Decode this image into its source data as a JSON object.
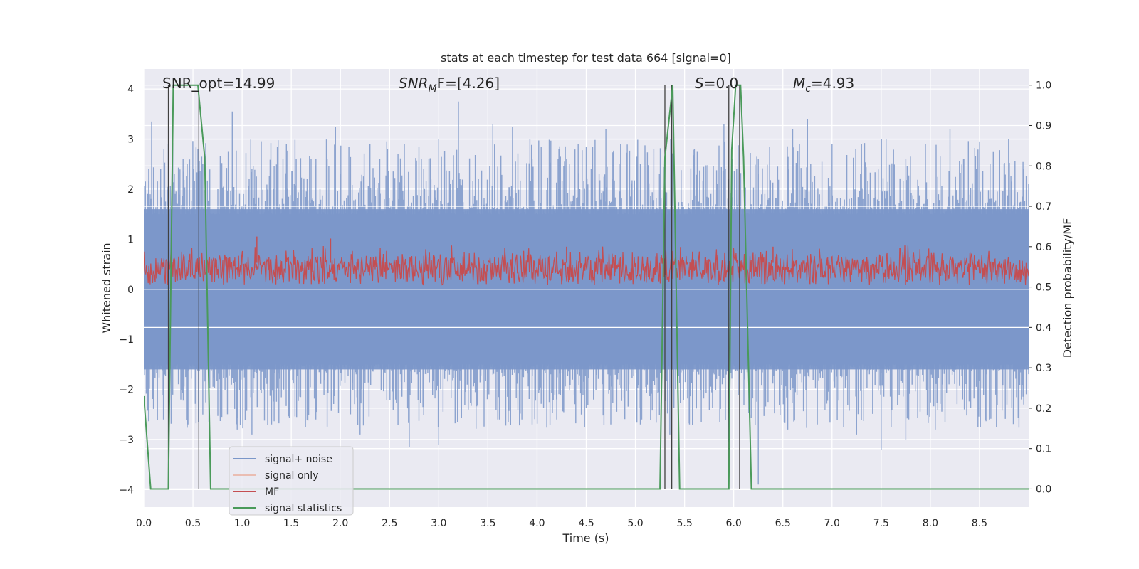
{
  "chart_data": {
    "type": "line",
    "title": "stats at each timestep for test data 664 [signal=0]",
    "xlabel": "Time (s)",
    "ylabel": "Whitened strain",
    "y2label": "Detection probability/MF",
    "xlim": [
      0,
      9.0
    ],
    "ylim": [
      -4.35,
      4.4
    ],
    "y2lim": [
      -0.045,
      1.04
    ],
    "xticks": [
      "0.0",
      "0.5",
      "1.0",
      "1.5",
      "2.0",
      "2.5",
      "3.0",
      "3.5",
      "4.0",
      "4.5",
      "5.0",
      "5.5",
      "6.0",
      "6.5",
      "7.0",
      "7.5",
      "8.0",
      "8.5"
    ],
    "yticks": [
      "−4",
      "−3",
      "−2",
      "−1",
      "0",
      "1",
      "2",
      "3",
      "4"
    ],
    "y2ticks": [
      "0.0",
      "0.1",
      "0.2",
      "0.3",
      "0.4",
      "0.5",
      "0.6",
      "0.7",
      "0.8",
      "0.9",
      "1.0"
    ],
    "grid": true,
    "legend_position": "lower-left",
    "annotations": {
      "snr_opt": "SNR_opt=14.99",
      "snr_mf_main": "SNR",
      "snr_mf_sub": "M",
      "snr_mf_rest": "F=[4.26]",
      "s_main": "S",
      "s_rest": "=0.0",
      "mc_main": "M",
      "mc_sub": "c",
      "mc_rest": "=4.93"
    },
    "series": [
      {
        "name": "signal+ noise",
        "color": "#7b97c9",
        "description_band": [
          -1.6,
          1.6
        ],
        "y_spikes": [
          [
            0.05,
            2.4
          ],
          [
            0.08,
            3.35
          ],
          [
            0.25,
            2.9
          ],
          [
            0.4,
            2.6
          ],
          [
            0.55,
            2.8
          ],
          [
            0.6,
            2.5
          ],
          [
            0.9,
            3.55
          ],
          [
            1.1,
            2.4
          ],
          [
            1.45,
            2.9
          ],
          [
            1.55,
            2.6
          ],
          [
            1.95,
            3.25
          ],
          [
            2.3,
            2.9
          ],
          [
            2.4,
            2.6
          ],
          [
            2.65,
            2.9
          ],
          [
            2.9,
            2.6
          ],
          [
            3.0,
            3.0
          ],
          [
            3.2,
            3.75
          ],
          [
            3.55,
            3.3
          ],
          [
            3.75,
            3.25
          ],
          [
            3.95,
            2.6
          ],
          [
            4.3,
            2.6
          ],
          [
            4.55,
            2.4
          ],
          [
            4.7,
            3.2
          ],
          [
            4.85,
            2.9
          ],
          [
            5.05,
            2.5
          ],
          [
            5.3,
            2.6
          ],
          [
            5.6,
            2.8
          ],
          [
            5.9,
            3.3
          ],
          [
            6.25,
            2.6
          ],
          [
            6.6,
            3.2
          ],
          [
            6.75,
            3.4
          ],
          [
            7.0,
            2.9
          ],
          [
            7.3,
            2.9
          ],
          [
            7.55,
            3.0
          ],
          [
            7.75,
            2.6
          ],
          [
            7.95,
            2.9
          ],
          [
            8.2,
            3.2
          ],
          [
            8.35,
            2.6
          ],
          [
            8.75,
            2.5
          ],
          [
            8.95,
            2.4
          ]
        ],
        "y_dips": [
          [
            0.05,
            -2.1
          ],
          [
            0.2,
            -2.6
          ],
          [
            0.45,
            -2.7
          ],
          [
            0.6,
            -2.5
          ],
          [
            0.95,
            -2.8
          ],
          [
            1.1,
            -2.9
          ],
          [
            1.3,
            -2.7
          ],
          [
            1.75,
            -2.6
          ],
          [
            2.2,
            -2.9
          ],
          [
            2.7,
            -3.15
          ],
          [
            3.0,
            -3.1
          ],
          [
            3.3,
            -2.4
          ],
          [
            3.6,
            -2.6
          ],
          [
            3.95,
            -2.7
          ],
          [
            4.2,
            -2.6
          ],
          [
            4.45,
            -2.5
          ],
          [
            4.75,
            -2.7
          ],
          [
            5.05,
            -2.7
          ],
          [
            5.35,
            -2.9
          ],
          [
            5.55,
            -2.7
          ],
          [
            5.95,
            -3.05
          ],
          [
            6.25,
            -3.9
          ],
          [
            6.55,
            -2.8
          ],
          [
            6.85,
            -2.7
          ],
          [
            7.25,
            -2.9
          ],
          [
            7.5,
            -3.2
          ],
          [
            7.75,
            -3.0
          ],
          [
            8.05,
            -2.8
          ],
          [
            8.35,
            -2.4
          ],
          [
            8.6,
            -2.6
          ],
          [
            8.95,
            -2.3
          ]
        ]
      },
      {
        "name": "signal only",
        "color": "#e9967a"
      },
      {
        "name": "MF",
        "color": "#c44e52",
        "band": [
          0.52,
          0.56
        ],
        "spikes": [
          [
            1.15,
            0.625
          ],
          [
            1.9,
            0.62
          ],
          [
            4.3,
            0.6
          ],
          [
            6.4,
            0.6
          ]
        ]
      },
      {
        "name": "signal statistics",
        "color": "#4a9a5a",
        "points": [
          [
            0.0,
            0.23
          ],
          [
            0.07,
            0.0
          ],
          [
            0.25,
            0.0
          ],
          [
            0.3,
            1.0
          ],
          [
            0.55,
            1.0
          ],
          [
            0.62,
            0.82
          ],
          [
            0.68,
            0.0
          ],
          [
            5.25,
            0.0
          ],
          [
            5.3,
            0.82
          ],
          [
            5.38,
            1.0
          ],
          [
            5.45,
            0.0
          ],
          [
            5.55,
            0.0
          ],
          [
            5.95,
            0.0
          ],
          [
            5.98,
            0.84
          ],
          [
            6.02,
            1.0
          ],
          [
            6.07,
            1.0
          ],
          [
            6.1,
            0.82
          ],
          [
            6.18,
            0.0
          ],
          [
            6.25,
            0.0
          ],
          [
            9.0,
            0.0
          ]
        ]
      }
    ],
    "vlines_x": [
      0.25,
      0.56,
      5.3,
      5.37,
      5.95,
      6.06
    ]
  }
}
